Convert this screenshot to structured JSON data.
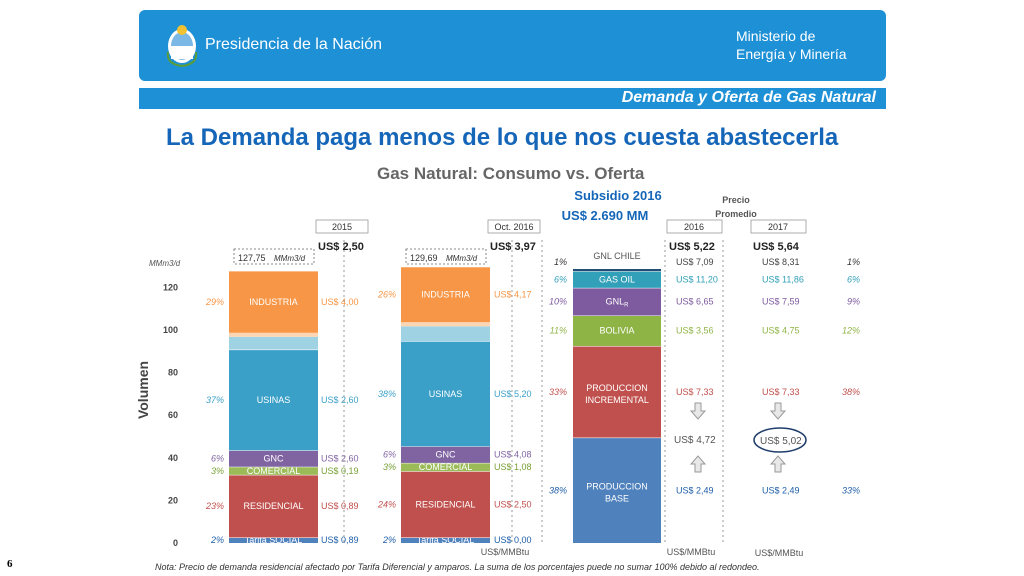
{
  "header": {
    "presidency": "Presidencia de la Nación",
    "ministry_line1": "Ministerio de",
    "ministry_line2": "Energía y Minería",
    "section": "Demanda y Oferta de Gas Natural"
  },
  "slide": {
    "title": "La Demanda paga menos de lo que nos cuesta abastecerla",
    "page_number": "6",
    "note": "Nota: Precio de demanda residencial afectado por Tarifa Diferencial y amparos. La suma de los porcentajes puede no sumar 100% debido al redondeo."
  },
  "colors": {
    "brand": "#1e90d6",
    "industria": "#f79646",
    "usinas": "#3ba0c8",
    "gnc": "#8064a2",
    "comercial": "#9bbb59",
    "residencial": "#c0504d",
    "tarifa_social": "#4f81bd",
    "gas_oil": "#31a0b8",
    "gnl": "#7e5a9e",
    "bolivia": "#8fb446",
    "produccion_incremental": "#c0504d",
    "produccion_base": "#4f81bd"
  },
  "chart_data": {
    "type": "bar",
    "title": "Gas Natural: Consumo vs. Oferta",
    "ylabel": "Volumen",
    "yunit": "MMm3/d",
    "ylim": [
      0,
      130
    ],
    "yticks": [
      0,
      20,
      40,
      60,
      80,
      100,
      120
    ],
    "price_unit": "US$/MMBtu",
    "price_header": "Precio Promedio",
    "subsidy": {
      "line1": "Subsidio 2016",
      "line2": "US$ 2.690  MM"
    },
    "demand": [
      {
        "label": "2015",
        "avg_price": "US$ 2,50",
        "total": 127.75,
        "total_label": "127,75",
        "segments": [
          {
            "name": "Tarifa SOCIAL",
            "value": 2.6,
            "pct": "2%",
            "price": "US$ 0,89",
            "color": "#4f81bd"
          },
          {
            "name": "RESIDENCIAL",
            "value": 29.4,
            "pct": "23%",
            "price": "US$ 0,89",
            "color": "#c0504d"
          },
          {
            "name": "COMERCIAL",
            "value": 3.8,
            "pct": "3%",
            "price": "US$ 0,19",
            "color": "#9bbb59"
          },
          {
            "name": "GNC",
            "value": 7.7,
            "pct": "6%",
            "price": "US$ 2,60",
            "color": "#8064a2"
          },
          {
            "name": "USINAS",
            "value": 47.3,
            "pct": "37%",
            "price": "US$ 2,60",
            "color": "#3ba0c8"
          },
          {
            "name": "",
            "value": 6.0,
            "pct": "",
            "price": "",
            "color": "#9fd3e3"
          },
          {
            "name": "",
            "value": 1.9,
            "pct": "",
            "price": "",
            "color": "#fcd5b4"
          },
          {
            "name": "INDUSTRIA",
            "value": 29.05,
            "pct": "29%",
            "price": "US$ 4,00",
            "color": "#f79646"
          }
        ]
      },
      {
        "label": "Oct. 2016",
        "avg_price": "US$ 3,97",
        "total": 129.69,
        "total_label": "129,69",
        "segments": [
          {
            "name": "Tarifa SOCIAL",
            "value": 2.6,
            "pct": "2%",
            "price": "US$ 0,00",
            "color": "#4f81bd"
          },
          {
            "name": "RESIDENCIAL",
            "value": 31.1,
            "pct": "24%",
            "price": "US$ 2,50",
            "color": "#c0504d"
          },
          {
            "name": "COMERCIAL",
            "value": 3.9,
            "pct": "3%",
            "price": "US$ 1,08",
            "color": "#9bbb59"
          },
          {
            "name": "GNC",
            "value": 7.8,
            "pct": "6%",
            "price": "US$ 4,08",
            "color": "#8064a2"
          },
          {
            "name": "USINAS",
            "value": 49.3,
            "pct": "38%",
            "price": "US$ 5,20",
            "color": "#3ba0c8"
          },
          {
            "name": "",
            "value": 7.0,
            "pct": "",
            "price": "",
            "color": "#9fd3e3"
          },
          {
            "name": "",
            "value": 2.0,
            "pct": "",
            "price": "",
            "color": "#fcd5b4"
          },
          {
            "name": "INDUSTRIA",
            "value": 25.99,
            "pct": "26%",
            "price": "US$ 4,17",
            "color": "#f79646"
          }
        ]
      }
    ],
    "supply": {
      "year_labels": [
        "2016",
        "2017"
      ],
      "avg_prices": [
        "US$ 5,22",
        "US$ 5,64"
      ],
      "segments": [
        {
          "name": "PRODUCCION BASE",
          "value": 49.5,
          "pct2016": "38%",
          "pct2017": "33%",
          "price2016": "US$ 2,49",
          "price2017": "US$ 2,49",
          "color": "#4f81bd"
        },
        {
          "name": "PRODUCCION INCREMENTAL",
          "value": 43.0,
          "pct2016": "33%",
          "pct2017": "38%",
          "price2016": "US$ 7,33",
          "price2017": "US$ 7,33",
          "color": "#c0504d"
        },
        {
          "name": "BOLIVIA",
          "value": 14.3,
          "pct2016": "11%",
          "pct2017": "12%",
          "price2016": "US$ 3,56",
          "price2017": "US$ 4,75",
          "color": "#8fb446"
        },
        {
          "name": "GNL",
          "subscript": "R",
          "value": 13.0,
          "pct2016": "10%",
          "pct2017": "9%",
          "price2016": "US$ 6,65",
          "price2017": "US$ 7,59",
          "color": "#7e5a9e"
        },
        {
          "name": "GAS OIL",
          "value": 7.8,
          "pct2016": "6%",
          "pct2017": "6%",
          "price2016": "US$ 11,20",
          "price2017": "US$ 11,86",
          "color": "#31a0b8"
        },
        {
          "name": "GNL CHILE",
          "value": 1.3,
          "pct2016": "1%",
          "pct2017": "1%",
          "price2016": "US$ 7,09",
          "price2017": "US$ 8,31",
          "color": "#1f4e79"
        }
      ],
      "local_prices": [
        "US$ 4,72",
        "US$ 5,02"
      ]
    }
  }
}
